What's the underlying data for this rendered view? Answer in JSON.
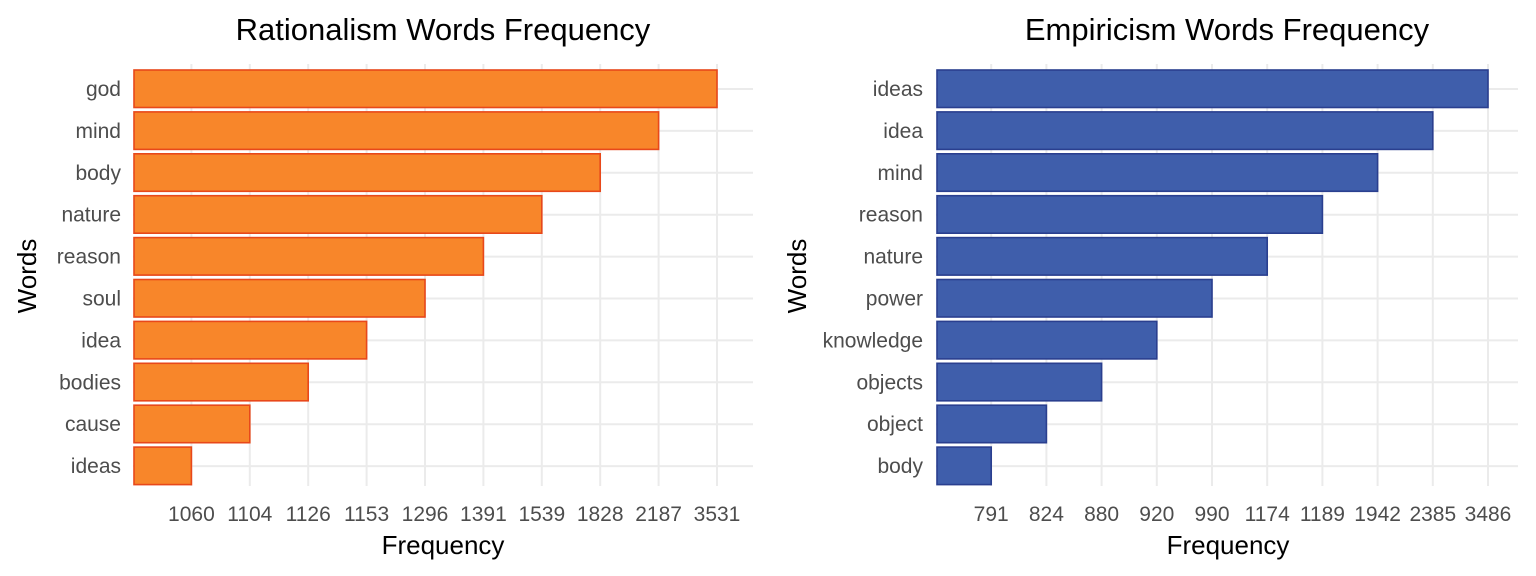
{
  "chart_data": [
    {
      "type": "bar",
      "orientation": "horizontal",
      "title": "Rationalism Words Frequency",
      "xlabel": "Frequency",
      "ylabel": "Words",
      "categories": [
        "god",
        "mind",
        "body",
        "nature",
        "reason",
        "soul",
        "idea",
        "bodies",
        "cause",
        "ideas"
      ],
      "values": [
        3531,
        2187,
        1828,
        1539,
        1391,
        1296,
        1153,
        1126,
        1104,
        1060
      ],
      "x_tick_labels": [
        "1060",
        "1104",
        "1126",
        "1153",
        "1296",
        "1391",
        "1539",
        "1828",
        "2187",
        "3531"
      ],
      "x_scale": "ordinal (ticks are the distinct frequency values, equally spaced)",
      "bar_color": "#f8862a",
      "bar_outline": "#e8481a",
      "grid": true,
      "legend": "none"
    },
    {
      "type": "bar",
      "orientation": "horizontal",
      "title": "Empiricism Words Frequency",
      "xlabel": "Frequency",
      "ylabel": "Words",
      "categories": [
        "ideas",
        "idea",
        "mind",
        "reason",
        "nature",
        "power",
        "knowledge",
        "objects",
        "object",
        "body"
      ],
      "values": [
        3486,
        2385,
        1942,
        1189,
        1174,
        990,
        920,
        880,
        824,
        791
      ],
      "x_tick_labels": [
        "791",
        "824",
        "880",
        "920",
        "990",
        "1174",
        "1189",
        "1942",
        "2385",
        "3486"
      ],
      "x_scale": "ordinal (ticks are the distinct frequency values, equally spaced)",
      "bar_color": "#3f5eab",
      "bar_outline": "#2a3f8f",
      "grid": true,
      "legend": "none"
    }
  ]
}
